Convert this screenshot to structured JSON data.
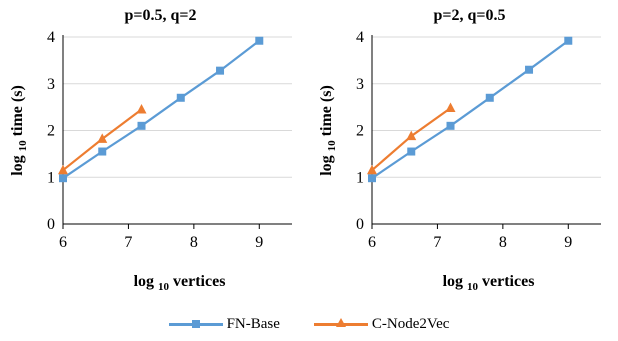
{
  "chart_data": [
    {
      "type": "line",
      "title": "p=0.5, q=2",
      "xlabel_main": "log",
      "xlabel_sub": "10",
      "xlabel_rest": "vertices",
      "ylabel_main": "log",
      "ylabel_sub": "10",
      "ylabel_rest": "time (s)",
      "xlim": [
        6,
        9.5
      ],
      "ylim": [
        0,
        4
      ],
      "xticks": [
        "6",
        "7",
        "8",
        "9"
      ],
      "yticks": [
        "0",
        "1",
        "2",
        "3",
        "4"
      ],
      "grid": "horizontal",
      "series": [
        {
          "name": "FN-Base",
          "color": "#5b9bd5",
          "marker": "square",
          "x": [
            6.0,
            6.6,
            7.2,
            7.8,
            8.4,
            9.0
          ],
          "y": [
            0.98,
            1.55,
            2.1,
            2.7,
            3.28,
            3.92
          ]
        },
        {
          "name": "C-Node2Vec",
          "color": "#ed7d31",
          "marker": "triangle",
          "x": [
            6.0,
            6.6,
            7.2
          ],
          "y": [
            1.15,
            1.82,
            2.45
          ]
        }
      ]
    },
    {
      "type": "line",
      "title": "p=2, q=0.5",
      "xlabel_main": "log",
      "xlabel_sub": "10",
      "xlabel_rest": "vertices",
      "ylabel_main": "log",
      "ylabel_sub": "10",
      "ylabel_rest": "time (s)",
      "xlim": [
        6,
        9.5
      ],
      "ylim": [
        0,
        4
      ],
      "xticks": [
        "6",
        "7",
        "8",
        "9"
      ],
      "yticks": [
        "0",
        "1",
        "2",
        "3",
        "4"
      ],
      "grid": "horizontal",
      "series": [
        {
          "name": "FN-Base",
          "color": "#5b9bd5",
          "marker": "square",
          "x": [
            6.0,
            6.6,
            7.2,
            7.8,
            8.4,
            9.0
          ],
          "y": [
            0.98,
            1.55,
            2.1,
            2.7,
            3.3,
            3.92
          ]
        },
        {
          "name": "C-Node2Vec",
          "color": "#ed7d31",
          "marker": "triangle",
          "x": [
            6.0,
            6.6,
            7.2
          ],
          "y": [
            1.15,
            1.88,
            2.48
          ]
        }
      ]
    }
  ],
  "legend": {
    "position": "bottom",
    "items": [
      {
        "label": "FN-Base",
        "color": "#5b9bd5"
      },
      {
        "label": "C-Node2Vec",
        "color": "#ed7d31"
      }
    ]
  }
}
